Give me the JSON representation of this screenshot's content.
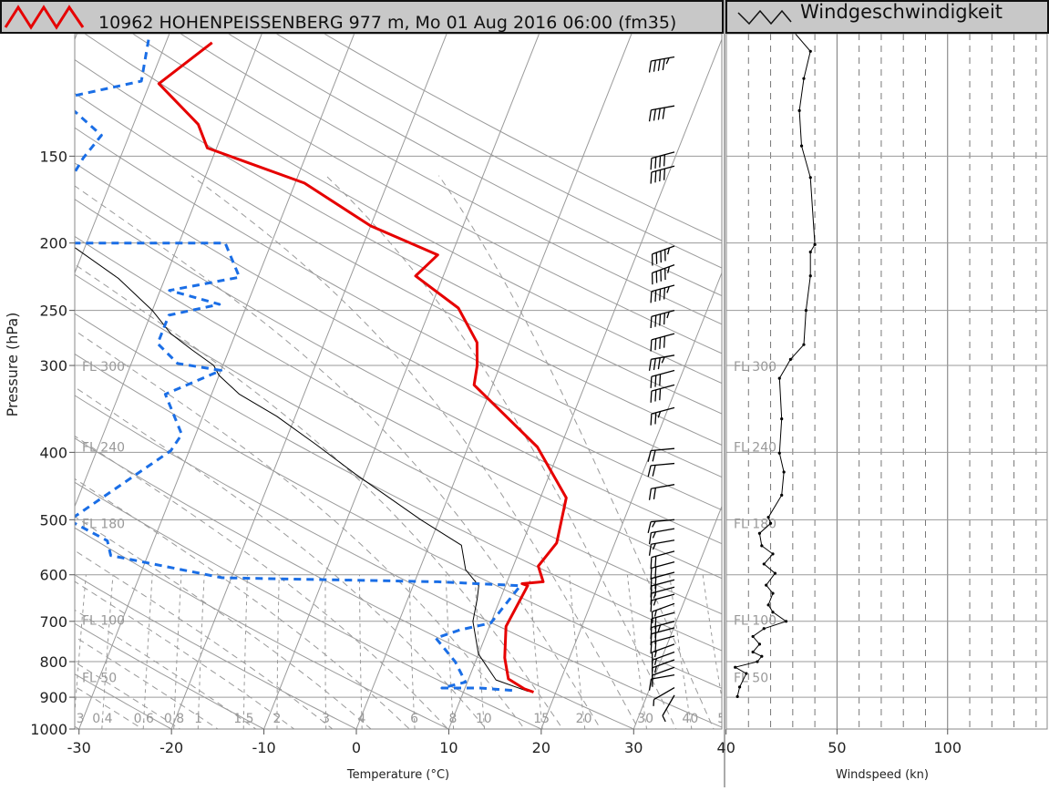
{
  "header": {
    "skewt_title": "10962 HOHENPEISSENBERG 977 m, Mo 01 Aug 2016 06:00 (fm35)",
    "wind_title": "Windgeschwindigkeit"
  },
  "colors": {
    "temperature": "#e60000",
    "dewpoint": "#1a6ee6",
    "parcel": "#000000",
    "grid": "#9a9a9a",
    "header_bg": "#c8c8c8"
  },
  "chart_data": [
    {
      "type": "line",
      "chart": "skew-t log-p",
      "title": "10962 HOHENPEISSENBERG 977 m, Mo 01 Aug 2016 06:00 (fm35)",
      "xlabel": "Temperature (°C)",
      "ylabel": "Pressure (hPa)",
      "xlim": [
        -30,
        40
      ],
      "ylim": [
        1000,
        100
      ],
      "y_scale": "log",
      "x_ticks": [
        -30,
        -20,
        -10,
        0,
        10,
        20,
        30,
        40
      ],
      "y_ticks": [
        150,
        200,
        250,
        300,
        400,
        500,
        600,
        700,
        800,
        900,
        1000
      ],
      "flight_levels": [
        {
          "label": "FL 300",
          "p": 301
        },
        {
          "label": "FL 240",
          "p": 393
        },
        {
          "label": "FL 180",
          "p": 506
        },
        {
          "label": "FL 100",
          "p": 697
        },
        {
          "label": "FL 50",
          "p": 843
        }
      ],
      "mixing_ratio_labels": [
        "0.3",
        "0.4",
        "0.6",
        "0.8",
        "1",
        "1.5",
        "2",
        "3",
        "4",
        "6",
        "8",
        "10",
        "15",
        "20",
        "30",
        "40",
        "50"
      ],
      "mixing_ratio_values": [
        0.3,
        0.4,
        0.6,
        0.8,
        1,
        1.5,
        2,
        3,
        4,
        6,
        8,
        10,
        15,
        20,
        30,
        40,
        50
      ],
      "series": [
        {
          "name": "temperature",
          "points": [
            [
              17.6,
              885
            ],
            [
              16.5,
              876
            ],
            [
              14.3,
              847
            ],
            [
              13.0,
              790
            ],
            [
              11.8,
              712
            ],
            [
              12.4,
              622
            ],
            [
              11.7,
              618
            ],
            [
              13.9,
              614
            ],
            [
              12.7,
              583
            ],
            [
              13.7,
              540
            ],
            [
              12.8,
              465
            ],
            [
              7.5,
              393
            ],
            [
              -2.0,
              320
            ],
            [
              -2.5,
              300
            ],
            [
              -3.5,
              278
            ],
            [
              -7.0,
              248
            ],
            [
              -13.0,
              223
            ],
            [
              -11.5,
              208
            ],
            [
              -20.0,
              189
            ],
            [
              -29.0,
              164
            ],
            [
              -41.0,
              146
            ],
            [
              -43.0,
              135
            ],
            [
              -49.0,
              118
            ],
            [
              -45.0,
              103
            ]
          ]
        },
        {
          "name": "dewpoint",
          "points": [
            [
              15.2,
              880
            ],
            [
              11.6,
              873
            ],
            [
              7.5,
              873
            ],
            [
              9.8,
              856
            ],
            [
              7.8,
              800
            ],
            [
              4.7,
              740
            ],
            [
              7.0,
              720
            ],
            [
              10.0,
              704
            ],
            [
              11.6,
              622
            ],
            [
              2.5,
              614
            ],
            [
              -21.0,
              606
            ],
            [
              -34.0,
              563
            ],
            [
              -35.0,
              536
            ],
            [
              -40.0,
              501
            ],
            [
              -32.0,
              398
            ],
            [
              -31.5,
              377
            ],
            [
              -35.0,
              330
            ],
            [
              -30.0,
              305
            ],
            [
              -35.0,
              298
            ],
            [
              -38.0,
              279
            ],
            [
              -38.0,
              254
            ],
            [
              -33.0,
              245
            ],
            [
              -39.0,
              234
            ],
            [
              -32.0,
              224
            ],
            [
              -35.0,
              200
            ],
            [
              -53.0,
              200
            ],
            [
              -53.0,
              190
            ],
            [
              -55.0,
              176
            ],
            [
              -54.0,
              151
            ],
            [
              -53.0,
              140
            ],
            [
              -59.0,
              124
            ],
            [
              -51.0,
              117
            ],
            [
              -52.0,
              102
            ]
          ]
        },
        {
          "name": "parcel",
          "points": [
            [
              17.0,
              883
            ],
            [
              13.0,
              850
            ],
            [
              10.0,
              780
            ],
            [
              8.0,
              700
            ],
            [
              7.5,
              650
            ],
            [
              7.1,
              622
            ],
            [
              5.0,
              590
            ],
            [
              3.5,
              544
            ],
            [
              -2.0,
              500
            ],
            [
              -11.0,
              430
            ],
            [
              -16.5,
              390
            ],
            [
              -22.0,
              355
            ],
            [
              -27.0,
              330
            ],
            [
              -30.0,
              310
            ],
            [
              -31.0,
              300
            ],
            [
              -34.0,
              285
            ],
            [
              -37.0,
              270
            ],
            [
              -40.0,
              250
            ],
            [
              -45.0,
              225
            ],
            [
              -55.0,
              190
            ],
            [
              -60.0,
              165
            ],
            [
              -62.0,
              150
            ],
            [
              -62.5,
              140
            ],
            [
              -65.0,
              132
            ],
            [
              -68.0,
              120
            ],
            [
              -70.0,
              100
            ]
          ]
        }
      ],
      "wind_barbs": [
        {
          "p": 894,
          "dir": 210,
          "kt": 5
        },
        {
          "p": 872,
          "dir": 240,
          "kt": 5
        },
        {
          "p": 836,
          "dir": 260,
          "kt": 10
        },
        {
          "p": 815,
          "dir": 250,
          "kt": 10
        },
        {
          "p": 795,
          "dir": 250,
          "kt": 15
        },
        {
          "p": 775,
          "dir": 250,
          "kt": 15
        },
        {
          "p": 755,
          "dir": 250,
          "kt": 15
        },
        {
          "p": 735,
          "dir": 255,
          "kt": 20
        },
        {
          "p": 715,
          "dir": 255,
          "kt": 20
        },
        {
          "p": 700,
          "dir": 255,
          "kt": 25
        },
        {
          "p": 680,
          "dir": 255,
          "kt": 20
        },
        {
          "p": 660,
          "dir": 250,
          "kt": 15
        },
        {
          "p": 640,
          "dir": 255,
          "kt": 15
        },
        {
          "p": 625,
          "dir": 255,
          "kt": 15
        },
        {
          "p": 610,
          "dir": 255,
          "kt": 20
        },
        {
          "p": 595,
          "dir": 255,
          "kt": 20
        },
        {
          "p": 575,
          "dir": 255,
          "kt": 20
        },
        {
          "p": 555,
          "dir": 255,
          "kt": 20
        },
        {
          "p": 535,
          "dir": 260,
          "kt": 15
        },
        {
          "p": 515,
          "dir": 260,
          "kt": 15
        },
        {
          "p": 500,
          "dir": 265,
          "kt": 15
        },
        {
          "p": 445,
          "dir": 260,
          "kt": 20
        },
        {
          "p": 415,
          "dir": 265,
          "kt": 20
        },
        {
          "p": 395,
          "dir": 265,
          "kt": 20
        },
        {
          "p": 345,
          "dir": 255,
          "kt": 25
        },
        {
          "p": 320,
          "dir": 255,
          "kt": 30
        },
        {
          "p": 305,
          "dir": 255,
          "kt": 30
        },
        {
          "p": 290,
          "dir": 260,
          "kt": 35
        },
        {
          "p": 270,
          "dir": 255,
          "kt": 40
        },
        {
          "p": 250,
          "dir": 255,
          "kt": 45
        },
        {
          "p": 230,
          "dir": 255,
          "kt": 45
        },
        {
          "p": 215,
          "dir": 250,
          "kt": 45
        },
        {
          "p": 202,
          "dir": 250,
          "kt": 45
        },
        {
          "p": 155,
          "dir": 255,
          "kt": 40
        },
        {
          "p": 148,
          "dir": 255,
          "kt": 40
        },
        {
          "p": 127,
          "dir": 260,
          "kt": 40
        },
        {
          "p": 108,
          "dir": 260,
          "kt": 45
        }
      ]
    },
    {
      "type": "line",
      "chart": "wind speed profile",
      "title": "Windgeschwindigkeit",
      "xlabel": "Windspeed (kn)",
      "xlim": [
        0,
        145
      ],
      "x_ticks": [
        50,
        100
      ],
      "ylim": [
        1000,
        100
      ],
      "y_scale": "log",
      "flight_levels": [
        {
          "label": "FL 300",
          "p": 301
        },
        {
          "label": "FL 240",
          "p": 393
        },
        {
          "label": "FL 180",
          "p": 506
        },
        {
          "label": "FL 100",
          "p": 697
        },
        {
          "label": "FL 50",
          "p": 843
        }
      ],
      "series": [
        {
          "name": "Windgeschwindigkeit",
          "points": [
            [
              5,
              898
            ],
            [
              6,
              870
            ],
            [
              9,
              832
            ],
            [
              4,
              815
            ],
            [
              14,
              800
            ],
            [
              16,
              786
            ],
            [
              12,
              775
            ],
            [
              15,
              755
            ],
            [
              12,
              736
            ],
            [
              17,
              717
            ],
            [
              27,
              700
            ],
            [
              21,
              679
            ],
            [
              19,
              663
            ],
            [
              21,
              638
            ],
            [
              18,
              621
            ],
            [
              22,
              597
            ],
            [
              17,
              579
            ],
            [
              21,
              560
            ],
            [
              16,
              545
            ],
            [
              15,
              523
            ],
            [
              20,
              506
            ],
            [
              19,
              496
            ],
            [
              25,
              461
            ],
            [
              26,
              427
            ],
            [
              24,
              401
            ],
            [
              25,
              358
            ],
            [
              24,
              313
            ],
            [
              29,
              294
            ],
            [
              35,
              280
            ],
            [
              36,
              250
            ],
            [
              38,
              223
            ],
            [
              38,
              206
            ],
            [
              40,
              201
            ],
            [
              38,
              161
            ],
            [
              34,
              145
            ],
            [
              33,
              129
            ],
            [
              35,
              116
            ],
            [
              38,
              106
            ],
            [
              30,
              99
            ]
          ]
        }
      ]
    }
  ]
}
